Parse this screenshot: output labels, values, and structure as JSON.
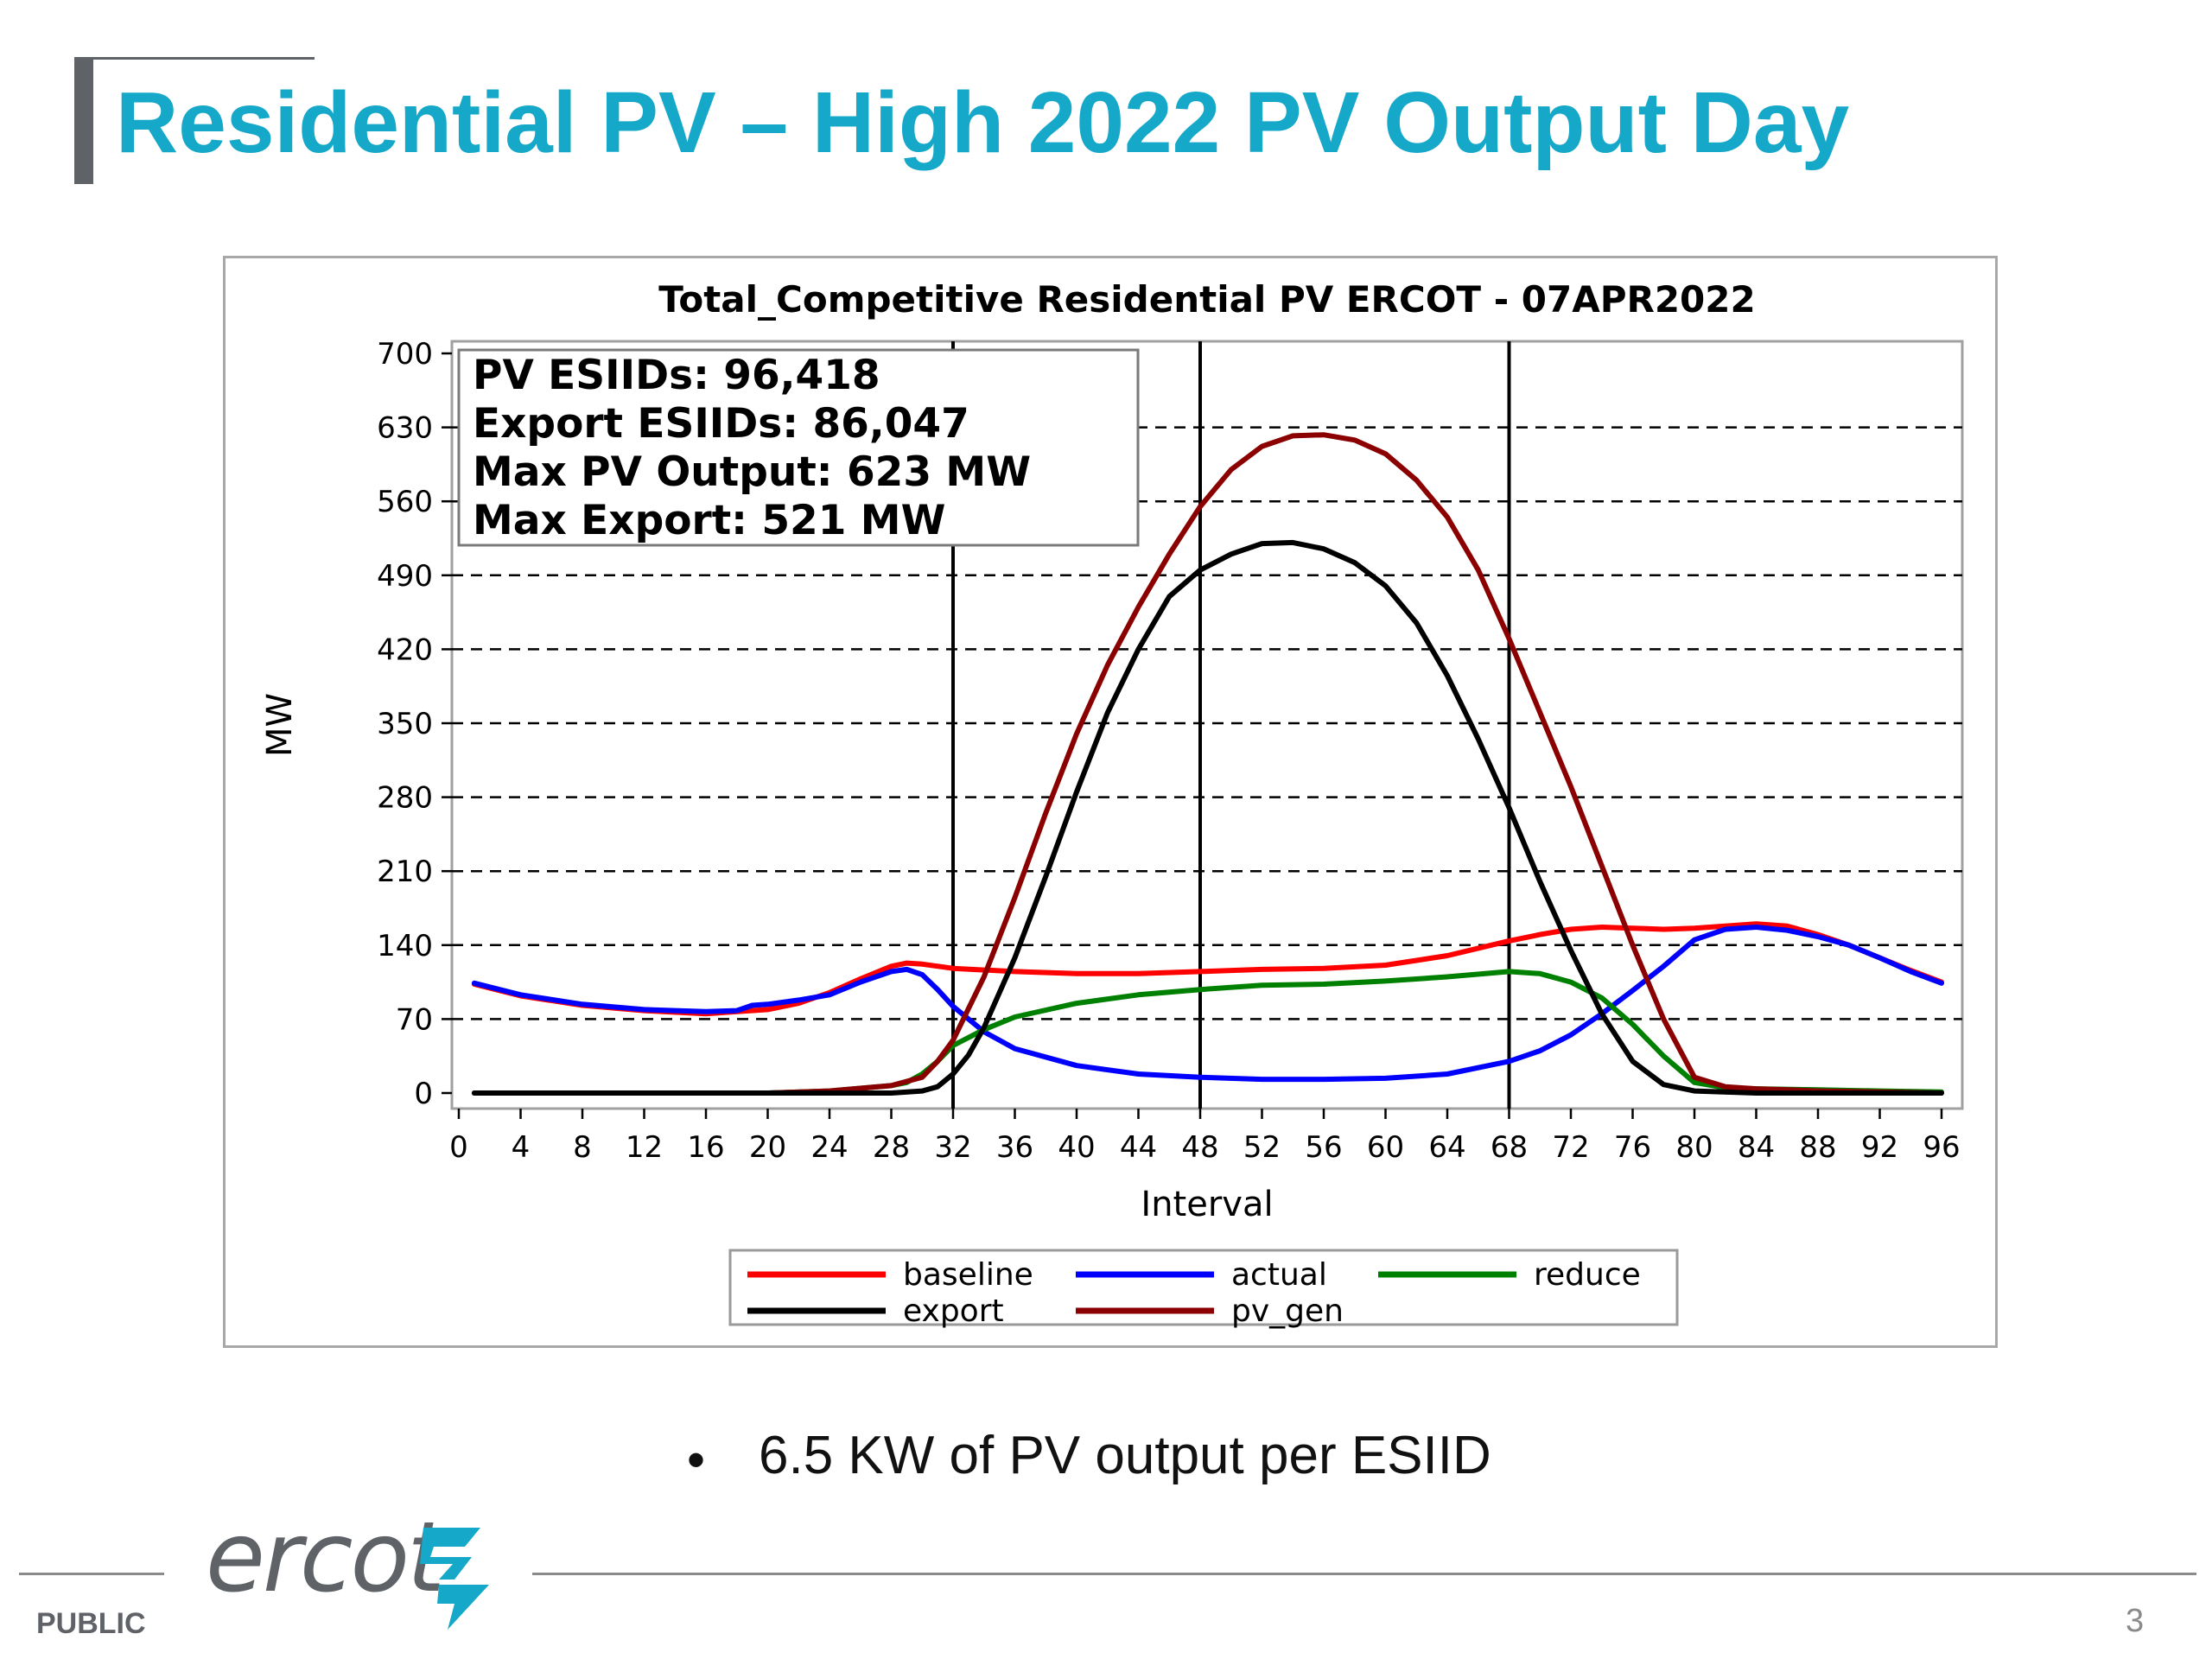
{
  "slide": {
    "title": "Residential PV – High 2022 PV Output Day",
    "bullet": "6.5 KW of PV output per ESIID",
    "footer_label": "PUBLIC",
    "page_number": "3",
    "logo_text": "ercot",
    "accent_color": "#16a8c8",
    "footer_color": "#5f6368"
  },
  "chart_data": {
    "type": "line",
    "title": "Total_Competitive Residential PV ERCOT - 07APR2022",
    "xlabel": "Interval",
    "ylabel": "MW",
    "xlim": [
      0,
      96
    ],
    "ylim": [
      0,
      700
    ],
    "xticks": [
      0,
      4,
      8,
      12,
      16,
      20,
      24,
      28,
      32,
      36,
      40,
      44,
      48,
      52,
      56,
      60,
      64,
      68,
      72,
      76,
      80,
      84,
      88,
      92,
      96
    ],
    "yticks": [
      0,
      70,
      140,
      210,
      280,
      350,
      420,
      490,
      560,
      630,
      700
    ],
    "grid": "horizontal dashed",
    "vertical_markers": [
      32,
      48,
      68
    ],
    "annotation_box": [
      "PV ESIIDs: 96,418",
      "Export ESIIDs: 86,047",
      "Max PV Output: 623 MW",
      "Max Export: 521 MW"
    ],
    "legend_placement": "bottom",
    "series": [
      {
        "name": "baseline",
        "color": "#ff0000",
        "x": [
          1,
          4,
          8,
          12,
          16,
          18,
          20,
          22,
          24,
          26,
          28,
          29,
          30,
          32,
          36,
          40,
          44,
          48,
          52,
          56,
          60,
          64,
          68,
          70,
          72,
          74,
          76,
          78,
          80,
          82,
          84,
          86,
          88,
          90,
          92,
          94,
          96
        ],
        "y": [
          103,
          92,
          83,
          78,
          75,
          77,
          79,
          85,
          95,
          108,
          120,
          123,
          122,
          118,
          115,
          113,
          113,
          115,
          117,
          118,
          121,
          130,
          144,
          150,
          155,
          157,
          156,
          155,
          156,
          158,
          160,
          158,
          150,
          140,
          128,
          116,
          105
        ]
      },
      {
        "name": "actual",
        "color": "#0000ff",
        "x": [
          1,
          4,
          8,
          12,
          16,
          18,
          19,
          20,
          22,
          24,
          26,
          28,
          29,
          30,
          31,
          32,
          34,
          36,
          40,
          44,
          48,
          52,
          56,
          60,
          64,
          68,
          70,
          72,
          74,
          76,
          78,
          80,
          82,
          84,
          86,
          88,
          90,
          92,
          94,
          96
        ],
        "y": [
          104,
          93,
          84,
          79,
          77,
          78,
          83,
          84,
          88,
          93,
          105,
          115,
          117,
          112,
          98,
          82,
          58,
          42,
          26,
          18,
          15,
          13,
          13,
          14,
          18,
          30,
          40,
          55,
          75,
          97,
          120,
          145,
          155,
          157,
          154,
          148,
          140,
          128,
          115,
          104
        ]
      },
      {
        "name": "reduce",
        "color": "#008000",
        "x": [
          1,
          20,
          24,
          28,
          29,
          30,
          31,
          32,
          34,
          36,
          40,
          44,
          48,
          52,
          56,
          60,
          64,
          68,
          70,
          72,
          74,
          76,
          78,
          80,
          82,
          84,
          88,
          92,
          96
        ],
        "y": [
          0,
          0,
          2,
          7,
          10,
          18,
          30,
          45,
          60,
          72,
          85,
          93,
          98,
          102,
          103,
          106,
          110,
          115,
          113,
          105,
          90,
          65,
          35,
          10,
          5,
          4,
          3,
          2,
          1
        ]
      },
      {
        "name": "export",
        "color": "#000000",
        "x": [
          1,
          20,
          24,
          28,
          30,
          31,
          32,
          33,
          34,
          36,
          38,
          40,
          42,
          44,
          46,
          48,
          50,
          52,
          54,
          56,
          58,
          60,
          62,
          64,
          66,
          68,
          70,
          72,
          74,
          76,
          78,
          80,
          84,
          96
        ],
        "y": [
          0,
          0,
          0,
          0,
          2,
          6,
          18,
          36,
          62,
          128,
          205,
          285,
          360,
          420,
          470,
          495,
          510,
          520,
          521,
          515,
          502,
          480,
          445,
          395,
          335,
          270,
          200,
          135,
          75,
          30,
          8,
          2,
          0,
          0
        ]
      },
      {
        "name": "pv_gen",
        "color": "#8b0000",
        "x": [
          1,
          20,
          24,
          28,
          30,
          31,
          32,
          33,
          34,
          36,
          38,
          40,
          42,
          44,
          46,
          48,
          50,
          52,
          54,
          56,
          58,
          60,
          62,
          64,
          66,
          68,
          70,
          72,
          74,
          76,
          78,
          80,
          82,
          84,
          86,
          88,
          92,
          96
        ],
        "y": [
          0,
          0,
          2,
          7,
          15,
          30,
          50,
          80,
          110,
          185,
          265,
          340,
          405,
          460,
          510,
          555,
          590,
          612,
          622,
          623,
          618,
          605,
          580,
          545,
          495,
          430,
          360,
          290,
          215,
          140,
          70,
          15,
          6,
          4,
          3,
          2,
          1,
          0
        ]
      }
    ]
  }
}
